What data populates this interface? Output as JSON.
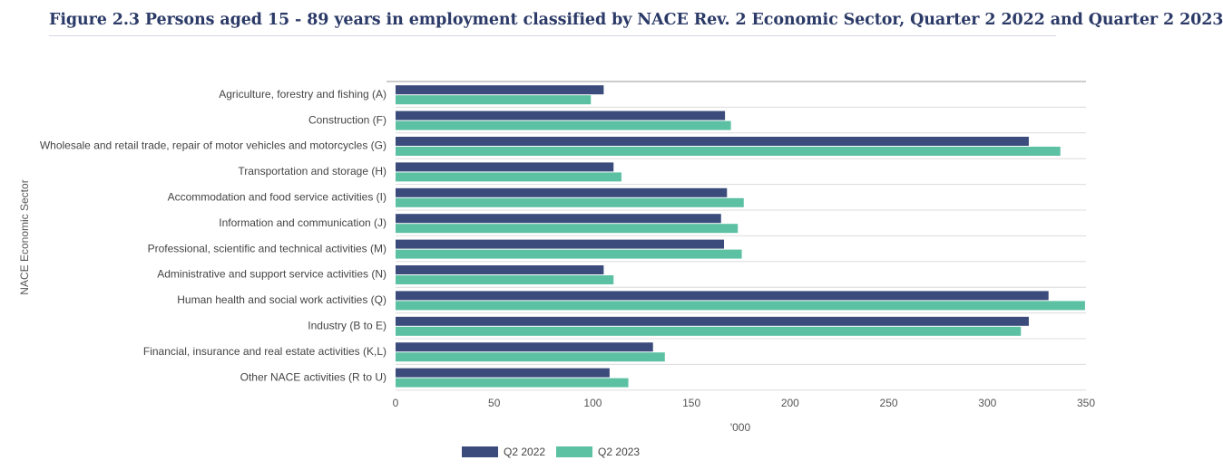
{
  "colors": {
    "title": "#2b3a67",
    "series_2022": "#3b4c7c",
    "series_2023": "#5cc0a2",
    "grid": "#dcdcdc",
    "axis": "#999999"
  },
  "chart_data": {
    "type": "bar",
    "orientation": "horizontal",
    "title": "Figure 2.3 Persons aged 15 - 89 years in employment classified by NACE Rev. 2 Economic Sector, Quarter 2 2022 and Quarter 2 2023",
    "xlabel": "'000",
    "ylabel": "NACE Economic Sector",
    "xlim": [
      0,
      350
    ],
    "xticks": [
      "0",
      "50",
      "100",
      "150",
      "200",
      "250",
      "300",
      "350"
    ],
    "grid": "horizontal separators between categories",
    "legend_position": "bottom-center",
    "categories": [
      "Agriculture, forestry and fishing (A)",
      "Construction (F)",
      "Wholesale and retail trade, repair of motor vehicles and motorcycles (G)",
      "Transportation and storage (H)",
      "Accommodation and food service activities (I)",
      "Information and communication (J)",
      "Professional, scientific and technical activities (M)",
      "Administrative and support service activities (N)",
      "Human health and social work activities (Q)",
      "Industry (B to E)",
      "Financial, insurance and real estate activities (K,L)",
      "Other NACE activities (R to U)"
    ],
    "series": [
      {
        "name": "Q2 2022",
        "color": "#3b4c7c",
        "values": [
          105.5,
          167,
          321,
          110.5,
          168,
          165,
          166.5,
          105.5,
          331,
          321,
          130.5,
          108.5
        ]
      },
      {
        "name": "Q2 2023",
        "color": "#5cc0a2",
        "values": [
          99,
          170,
          337,
          114.5,
          176.5,
          173.5,
          175.5,
          110.5,
          349.5,
          317,
          136.5,
          118
        ]
      }
    ]
  }
}
